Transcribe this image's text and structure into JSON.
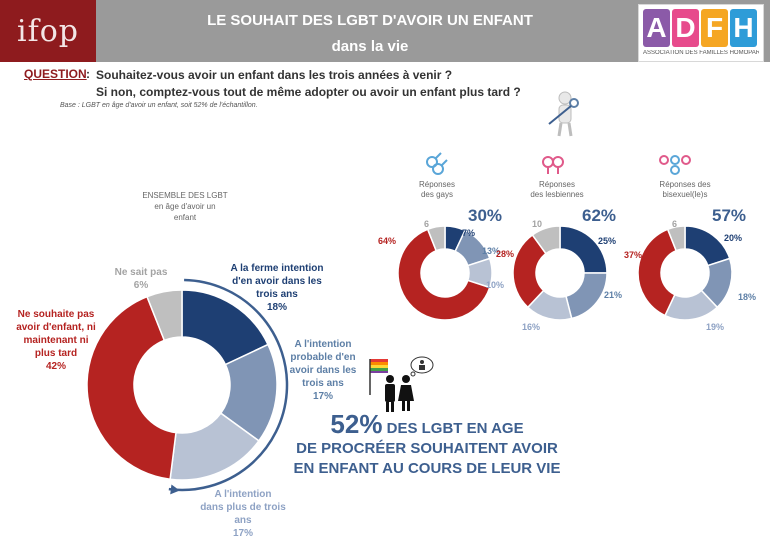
{
  "header": {
    "logo_ifop": "ifop",
    "title_line1": "LE SOUHAIT DES LGBT D'AVOIR UN ENFANT",
    "title_line2": "dans la vie",
    "adfh_letters": [
      "A",
      "D",
      "F",
      "H"
    ],
    "adfh_subtitle": "ASSOCIATION DES FAMILLES HOMOPARENTALES",
    "adfh_colors": [
      "#8b5aa8",
      "#e74b8c",
      "#f5a623",
      "#2e9cd8"
    ]
  },
  "question": {
    "label": "QUESTION",
    "colon": ":",
    "line1": "Souhaitez-vous avoir un enfant dans les trois années à venir ?",
    "line2": "Si non, comptez-vous tout de même adopter ou avoir un enfant plus tard ?",
    "base": "Base : LGBT en âge d'avoir un enfant, soit 52% de l'échantillon."
  },
  "colors": {
    "navy": "#1e3f73",
    "mid_blue": "#8095b5",
    "light_blue": "#b8c2d4",
    "red": "#b52321",
    "grey": "#bfbfbf"
  },
  "chart_data": [
    {
      "type": "pie",
      "title": "ENSEMBLE DES LGBT en âge d'avoir un enfant",
      "slices": [
        {
          "label": "A la ferme intention d'en avoir dans les trois ans",
          "value": 18
        },
        {
          "label": "A l'intention probable d'en avoir dans les trois ans",
          "value": 17
        },
        {
          "label": "A l'intention dans plus de trois ans",
          "value": 17
        },
        {
          "label": "Ne souhaite pas avoir d'enfant, ni maintenant ni plus tard",
          "value": 42
        },
        {
          "label": "Ne sait pas",
          "value": 6
        }
      ],
      "labels_display": {
        "ferme_l1": "A la ferme intention",
        "ferme_l2": "d'en avoir dans les",
        "ferme_l3": "trois ans",
        "ferme_v": "18%",
        "probable_l1": "A l'intention",
        "probable_l2": "probable d'en",
        "probable_l3": "avoir dans les",
        "probable_l4": "trois ans",
        "probable_v": "17%",
        "plus_l1": "A l'intention",
        "plus_l2": "dans plus de trois",
        "plus_l3": "ans",
        "plus_v": "17%",
        "non_l1": "Ne souhaite pas",
        "non_l2": "avoir d'enfant, ni",
        "non_l3": "maintenant ni",
        "non_l4": "plus tard",
        "non_v": "42%",
        "nsp_l1": "Ne sait pas",
        "nsp_v": "6%"
      },
      "header_line1": "ENSEMBLE DES LGBT",
      "header_line2": "en âge d'avoir un",
      "header_line3": "enfant"
    },
    {
      "type": "pie",
      "title": "Réponses des gays",
      "title_l1": "Réponses",
      "title_l2": "des gays",
      "total_label": "30%",
      "slices": [
        {
          "label": "ferme intention",
          "value": 7,
          "display": "7%"
        },
        {
          "label": "probable",
          "value": 13,
          "display": "13%"
        },
        {
          "label": "plus de trois ans",
          "value": 10,
          "display": "10%"
        },
        {
          "label": "ne souhaite pas",
          "value": 64,
          "display": "64%"
        },
        {
          "label": "ne sait pas",
          "value": 6,
          "display": "6"
        }
      ]
    },
    {
      "type": "pie",
      "title": "Réponses des lesbiennes",
      "title_l1": "Réponses",
      "title_l2": "des lesbiennes",
      "total_label": "62%",
      "slices": [
        {
          "label": "ferme intention",
          "value": 25,
          "display": "25%"
        },
        {
          "label": "probable",
          "value": 21,
          "display": "21%"
        },
        {
          "label": "plus de trois ans",
          "value": 16,
          "display": "16%"
        },
        {
          "label": "ne souhaite pas",
          "value": 28,
          "display": "28%"
        },
        {
          "label": "ne sait pas",
          "value": 10,
          "display": "10"
        }
      ]
    },
    {
      "type": "pie",
      "title": "Réponses des bisexuel(le)s",
      "title_l1": "Réponses des",
      "title_l2": "bisexuel(le)s",
      "total_label": "57%",
      "slices": [
        {
          "label": "ferme intention",
          "value": 20,
          "display": "20%"
        },
        {
          "label": "probable",
          "value": 18,
          "display": "18%"
        },
        {
          "label": "plus de trois ans",
          "value": 19,
          "display": "19%"
        },
        {
          "label": "ne souhaite pas",
          "value": 37,
          "display": "37%"
        },
        {
          "label": "ne sait pas",
          "value": 6,
          "display": "6"
        }
      ]
    }
  ],
  "headline": {
    "big": "52%",
    "line1_rest": "DES LGBT EN AGE",
    "line2": "DE PROCRÉER SOUHAITENT AVOIR",
    "line3": "EN ENFANT AU COURS DE LEUR VIE"
  }
}
